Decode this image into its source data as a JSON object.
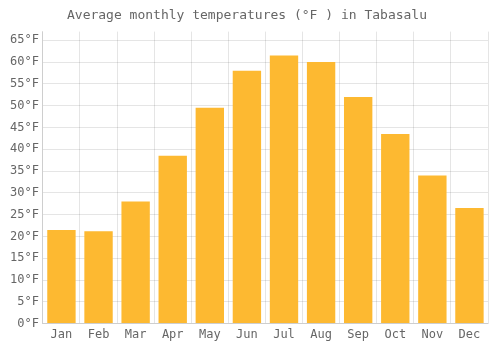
{
  "chart_data": {
    "type": "bar",
    "title": "Average monthly temperatures (°F ) in Tabasalu",
    "categories": [
      "Jan",
      "Feb",
      "Mar",
      "Apr",
      "May",
      "Jun",
      "Jul",
      "Aug",
      "Sep",
      "Oct",
      "Nov",
      "Dec"
    ],
    "values": [
      21.5,
      21.2,
      28.0,
      38.5,
      49.5,
      58.0,
      61.5,
      60.0,
      52.0,
      43.5,
      34.0,
      26.5
    ],
    "color": "#FDB931",
    "ylim": [
      0,
      67
    ],
    "yticks": [
      {
        "value": 0,
        "label": "0°F"
      },
      {
        "value": 5,
        "label": "5°F"
      },
      {
        "value": 10,
        "label": "10°F"
      },
      {
        "value": 15,
        "label": "15°F"
      },
      {
        "value": 20,
        "label": "20°F"
      },
      {
        "value": 25,
        "label": "25°F"
      },
      {
        "value": 30,
        "label": "30°F"
      },
      {
        "value": 35,
        "label": "35°F"
      },
      {
        "value": 40,
        "label": "40°F"
      },
      {
        "value": 45,
        "label": "45°F"
      },
      {
        "value": 50,
        "label": "50°F"
      },
      {
        "value": 55,
        "label": "55°F"
      },
      {
        "value": 60,
        "label": "60°F"
      },
      {
        "value": 65,
        "label": "65°F"
      }
    ],
    "grid": true
  }
}
